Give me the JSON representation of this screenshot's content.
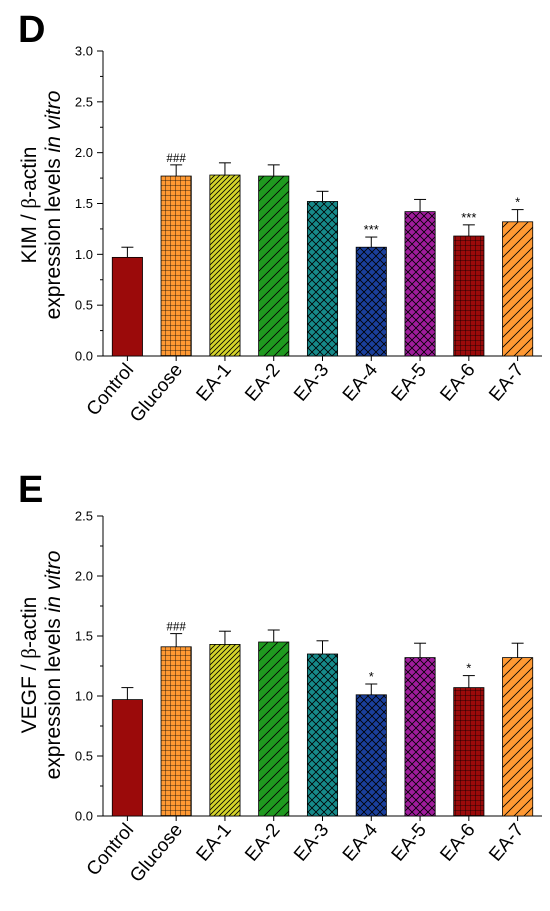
{
  "colors": {
    "Control": "#9b0a0a",
    "Glucose": "#ff9933",
    "EA-1": "#d4d42a",
    "EA-2": "#1f9a1f",
    "EA-3": "#168a8a",
    "EA-4": "#1a3f9c",
    "EA-5": "#a01c9c",
    "EA-6": "#9b0a0a",
    "EA-7": "#ff9933"
  },
  "patterns": [
    "none",
    "grid",
    "diag-fine",
    "diag-coarse",
    "crosshatch",
    "crosshatch",
    "crosshatch",
    "grid",
    "diag-coarse"
  ],
  "chart_data": [
    {
      "type": "bar",
      "panel": "D",
      "ylabel_line1_pre": "KIM / ",
      "ylabel_line1_beta": "β",
      "ylabel_line1_post": "-actin",
      "ylabel_line2_pre": "expression levels ",
      "ylabel_line2_ital": "in vitro",
      "categories": [
        "Control",
        "Glucose",
        "EA-1",
        "EA-2",
        "EA-3",
        "EA-4",
        "EA-5",
        "EA-6",
        "EA-7"
      ],
      "values": [
        0.97,
        1.77,
        1.78,
        1.77,
        1.52,
        1.07,
        1.42,
        1.18,
        1.32
      ],
      "errors": [
        0.1,
        0.11,
        0.12,
        0.11,
        0.1,
        0.1,
        0.12,
        0.11,
        0.12
      ],
      "annotations": [
        "",
        "###",
        "",
        "",
        "",
        "***",
        "",
        "***",
        "*"
      ],
      "ylim": [
        0,
        3.0
      ],
      "yticks": [
        "0.0",
        "0.5",
        "1.0",
        "1.5",
        "2.0",
        "2.5",
        "3.0"
      ]
    },
    {
      "type": "bar",
      "panel": "E",
      "ylabel_line1_pre": "VEGF / ",
      "ylabel_line1_beta": "β",
      "ylabel_line1_post": "-actin",
      "ylabel_line2_pre": "expression levels ",
      "ylabel_line2_ital": "in vitro",
      "categories": [
        "Control",
        "Glucose",
        "EA-1",
        "EA-2",
        "EA-3",
        "EA-4",
        "EA-5",
        "EA-6",
        "EA-7"
      ],
      "values": [
        0.97,
        1.41,
        1.43,
        1.45,
        1.35,
        1.01,
        1.32,
        1.07,
        1.32
      ],
      "errors": [
        0.1,
        0.11,
        0.11,
        0.1,
        0.11,
        0.09,
        0.12,
        0.1,
        0.12
      ],
      "annotations": [
        "",
        "###",
        "",
        "",
        "",
        "*",
        "",
        "*",
        ""
      ],
      "ylim": [
        0,
        2.5
      ],
      "yticks": [
        "0.0",
        "0.5",
        "1.0",
        "1.5",
        "2.0",
        "2.5"
      ]
    }
  ]
}
